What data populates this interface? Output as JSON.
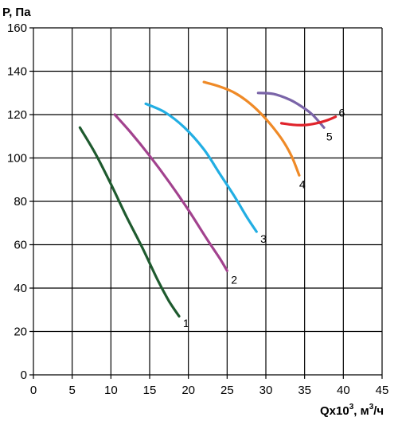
{
  "chart_data": {
    "type": "line",
    "ylabel": "P, Па",
    "xlabel_main": "Qx10",
    "xlabel_sup": "3",
    "xlabel_unit": ", м",
    "xlabel_unit_sup": "3",
    "xlabel_unit_end": "/ч",
    "xlim": [
      0,
      45
    ],
    "ylim": [
      0,
      160
    ],
    "x_ticks": [
      "0",
      "5",
      "10",
      "15",
      "20",
      "25",
      "30",
      "35",
      "40",
      "45"
    ],
    "y_ticks": [
      "0",
      "20",
      "40",
      "60",
      "80",
      "100",
      "120",
      "140",
      "160"
    ],
    "grid": true,
    "series": [
      {
        "name": "1",
        "color": "#1e5a2e",
        "x": [
          6,
          8,
          10,
          12,
          14,
          16,
          17.5,
          18.8
        ],
        "y": [
          114,
          102,
          88,
          73,
          59,
          44,
          34,
          27
        ]
      },
      {
        "name": "2",
        "color": "#a2428e",
        "x": [
          10.5,
          12.5,
          15,
          17.5,
          20,
          22.5,
          24,
          25
        ],
        "y": [
          120,
          112,
          101,
          89,
          76,
          62,
          54,
          48
        ]
      },
      {
        "name": "3",
        "color": "#22aee3",
        "x": [
          14.5,
          17,
          19.5,
          22,
          24,
          26,
          27.5,
          28.8
        ],
        "y": [
          125,
          121,
          114,
          104,
          93,
          82,
          73,
          66
        ]
      },
      {
        "name": "4",
        "color": "#ef8a27",
        "x": [
          22,
          24,
          26,
          28,
          30,
          32,
          33.3,
          34.3
        ],
        "y": [
          135,
          133,
          130,
          125,
          118,
          109,
          101,
          92
        ]
      },
      {
        "name": "5",
        "color": "#7a64a8",
        "x": [
          29,
          31,
          33,
          34.5,
          36,
          37.5
        ],
        "y": [
          130,
          129.5,
          127,
          124,
          120,
          114
        ]
      },
      {
        "name": "6",
        "color": "#e0232b",
        "x": [
          32,
          33.5,
          35,
          36.5,
          38,
          39
        ],
        "y": [
          116,
          115.3,
          115.2,
          116,
          117.5,
          119
        ]
      }
    ],
    "annotations": [
      {
        "text": "1",
        "x": 19.3,
        "y": 22
      },
      {
        "text": "2",
        "x": 25.5,
        "y": 42
      },
      {
        "text": "3",
        "x": 29.3,
        "y": 61
      },
      {
        "text": "4",
        "x": 34.3,
        "y": 86
      },
      {
        "text": "5",
        "x": 37.8,
        "y": 108
      },
      {
        "text": "6",
        "x": 39.4,
        "y": 119
      }
    ]
  }
}
